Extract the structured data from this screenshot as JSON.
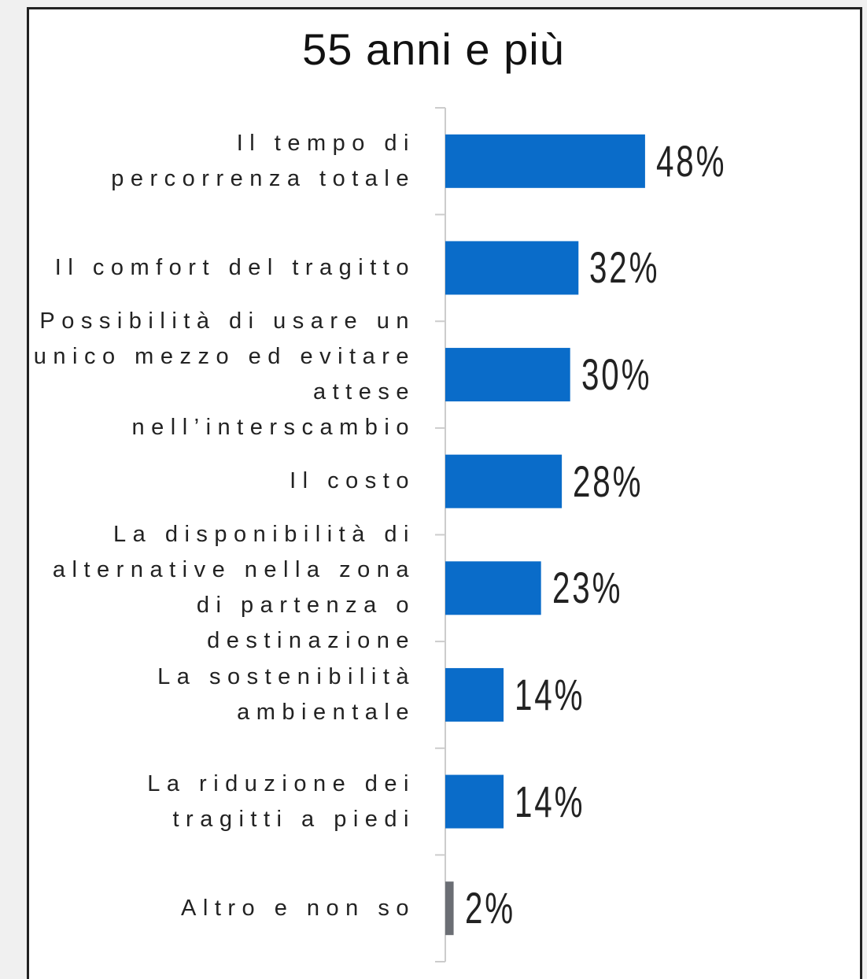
{
  "chart_data": {
    "type": "bar",
    "orientation": "horizontal",
    "title": "55 anni e più",
    "categories": [
      "Il tempo di percorrenza totale",
      "Il comfort del tragitto",
      "Possibilità di usare un unico mezzo ed evitare attese nell’interscambio",
      "Il costo",
      "La disponibilità di alternative nella zona di partenza o destinazione",
      "La sostenibilità ambientale",
      "La riduzione dei tragitti a piedi",
      "Altro e non so"
    ],
    "values": [
      48,
      32,
      30,
      28,
      23,
      14,
      14,
      2
    ],
    "value_labels": [
      "48%",
      "32%",
      "30%",
      "28%",
      "23%",
      "14%",
      "14%",
      "2%"
    ],
    "colors": [
      "#0a6cc9",
      "#0a6cc9",
      "#0a6cc9",
      "#0a6cc9",
      "#0a6cc9",
      "#0a6cc9",
      "#0a6cc9",
      "#6b6e74"
    ],
    "xlim": [
      0,
      100
    ]
  }
}
